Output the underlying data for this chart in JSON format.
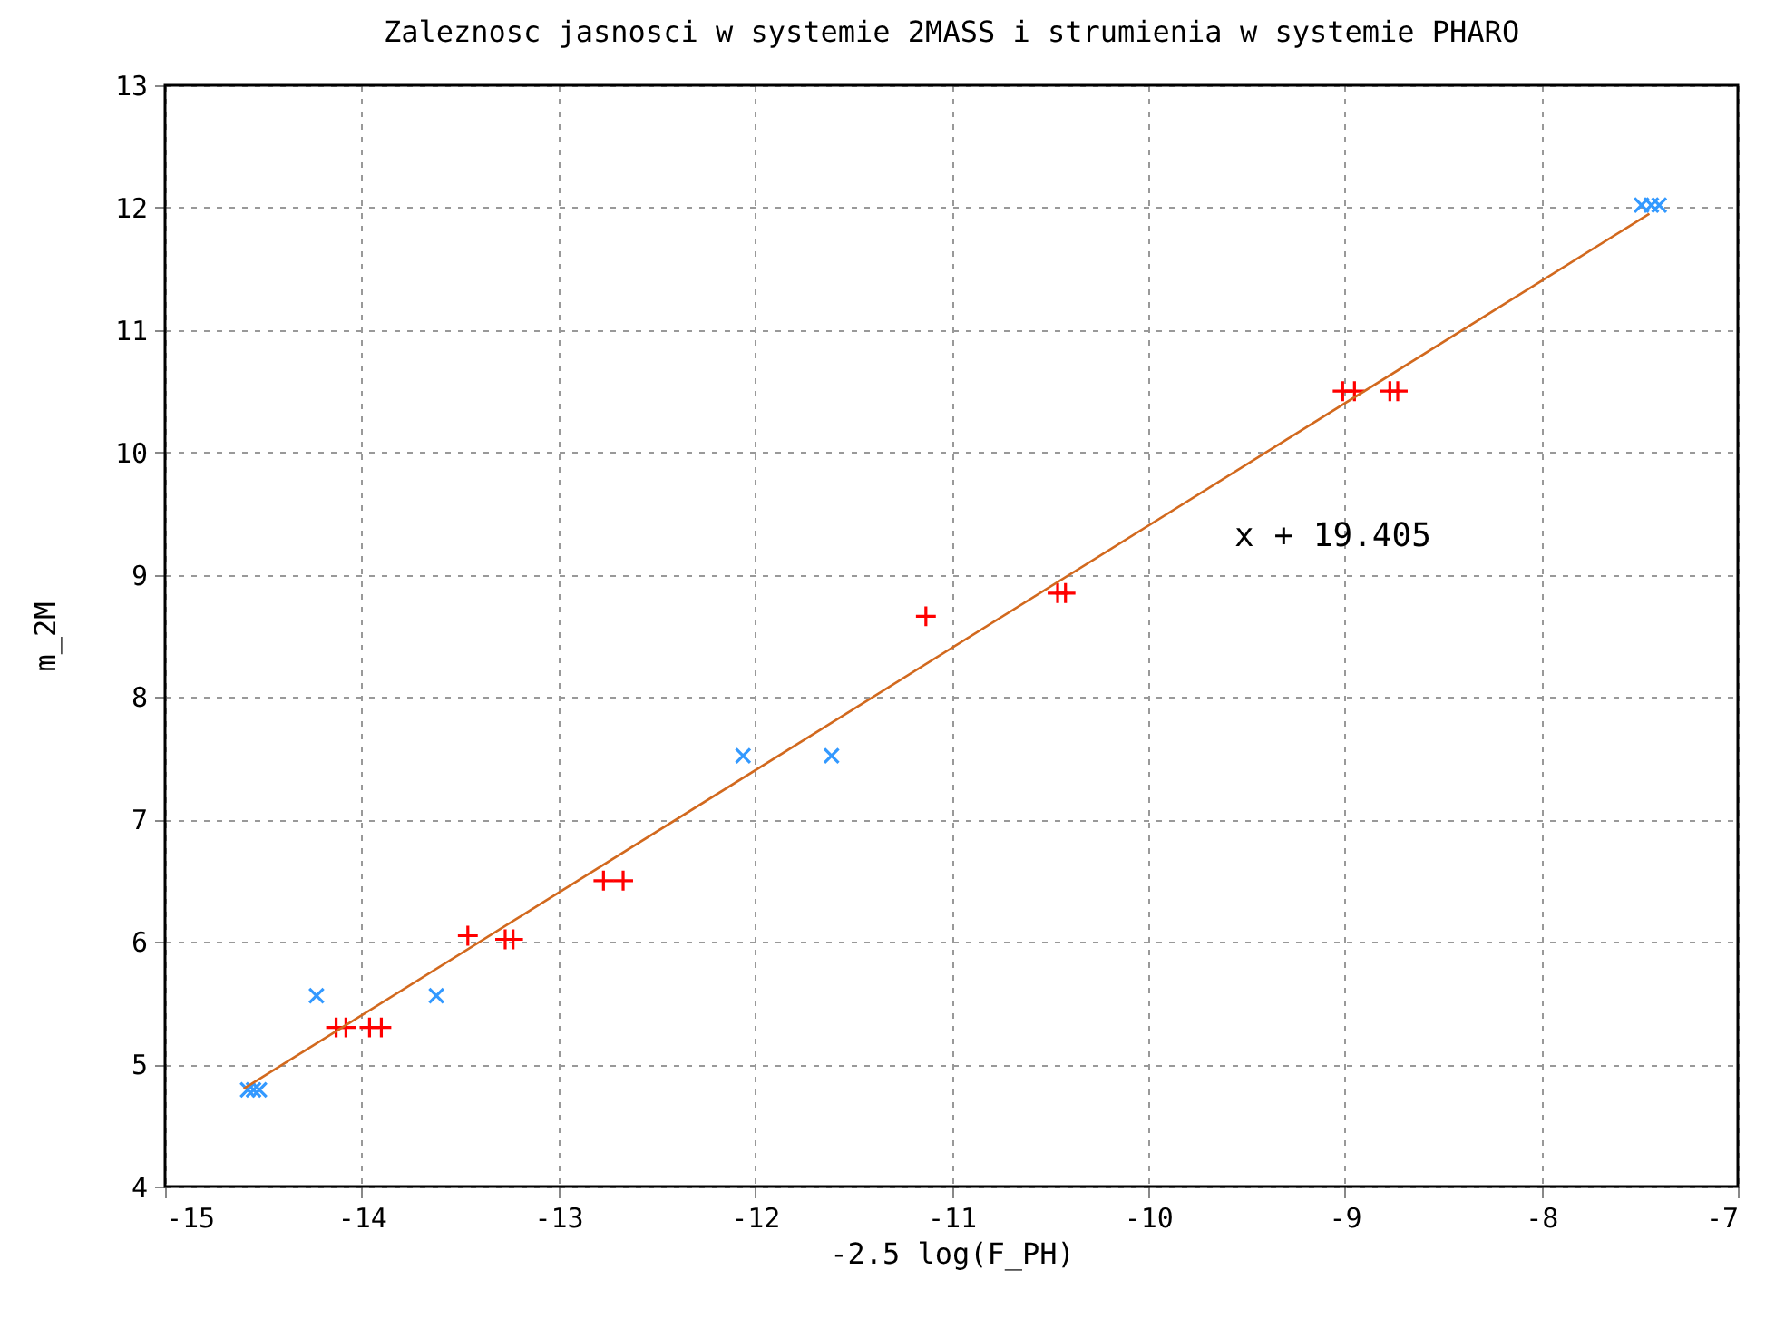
{
  "chart_data": {
    "type": "scatter",
    "title": "Zaleznosc jasnosci w systemie 2MASS i strumienia w systemie PHARO",
    "xlabel": "-2.5 log(F_PH)",
    "ylabel": "m_2M",
    "series": [
      {
        "color": "#ff0000",
        "marker": "cross",
        "x": [
          -14.13,
          -14.08,
          -13.96,
          -13.9,
          -13.46,
          -13.27,
          -13.23,
          -12.77,
          -12.67,
          -11.13,
          -10.46,
          -10.42,
          -9.01,
          -8.95,
          -8.77,
          -8.73
        ],
        "values": [
          5.3,
          5.3,
          5.3,
          5.3,
          6.05,
          6.02,
          6.02,
          6.5,
          6.5,
          8.66,
          8.85,
          8.85,
          10.5,
          10.5,
          10.5,
          10.5
        ]
      },
      {
        "color": "#3399ff",
        "marker": "cross",
        "x": [
          -14.58,
          -14.55,
          -14.52,
          -14.23,
          -13.62,
          -12.06,
          -11.61,
          -7.49,
          -7.44,
          -7.4
        ],
        "values": [
          4.79,
          4.79,
          4.79,
          5.56,
          5.56,
          7.52,
          7.52,
          12.02,
          12.02,
          12.02
        ]
      },
      {
        "type": "line",
        "color": "#d2691e",
        "marker": "none",
        "x": [
          -14.6,
          -7.45
        ],
        "values": [
          4.8,
          11.95
        ]
      }
    ],
    "annotations": [
      "x + 19.405"
    ],
    "xlim": [
      -15,
      -7
    ],
    "xticks": [
      -15,
      -14,
      -13,
      -12,
      -11,
      -10,
      -9,
      -8,
      -7
    ],
    "ylim": [
      4,
      13
    ],
    "yticks": [
      4,
      5,
      6,
      7,
      8,
      9,
      10,
      11,
      12,
      13
    ],
    "grid": true
  }
}
